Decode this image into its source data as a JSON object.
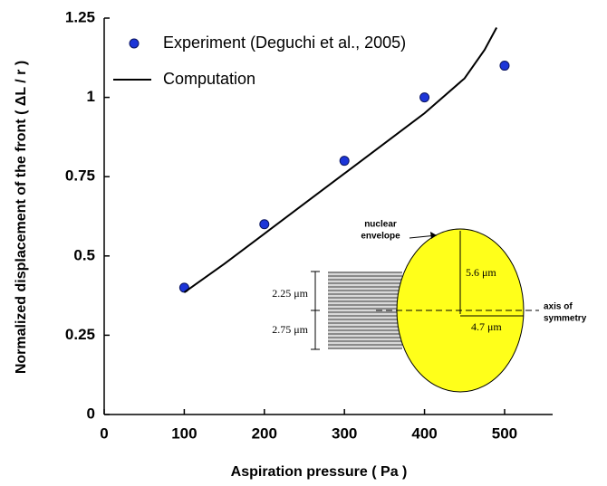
{
  "chart_data": {
    "type": "scatter",
    "xlabel": "Aspiration pressure ( Pa )",
    "ylabel": "Normalized displacement of the front ( ΔL / r )",
    "xlim": [
      0,
      560
    ],
    "xticks": [
      0,
      100,
      200,
      300,
      400,
      500
    ],
    "ylim": [
      0,
      1.25
    ],
    "yticks": [
      0,
      0.25,
      0.5,
      0.75,
      1,
      1.25
    ],
    "grid": false,
    "series": [
      {
        "name": "Experiment (Deguchi et al., 2005)",
        "type": "scatter",
        "color": "#1c35d8",
        "x": [
          100,
          200,
          300,
          400,
          500
        ],
        "values": [
          0.4,
          0.6,
          0.8,
          1.0,
          1.1
        ]
      },
      {
        "name": "Computation",
        "type": "line",
        "color": "#000000",
        "x": [
          100,
          150,
          200,
          250,
          300,
          350,
          400,
          450,
          475,
          490
        ],
        "values": [
          0.385,
          0.475,
          0.57,
          0.665,
          0.76,
          0.855,
          0.95,
          1.06,
          1.15,
          1.22
        ]
      }
    ],
    "annotations": {
      "nuclear_envelope": [
        "nuclear",
        "envelope"
      ],
      "radius_vertical": "5.6 μm",
      "radius_horizontal": "4.7 μm",
      "upper_width": "2.25 μm",
      "lower_width": "2.75 μm",
      "axis_of_symmetry": [
        "axis of",
        "symmetry"
      ]
    }
  }
}
